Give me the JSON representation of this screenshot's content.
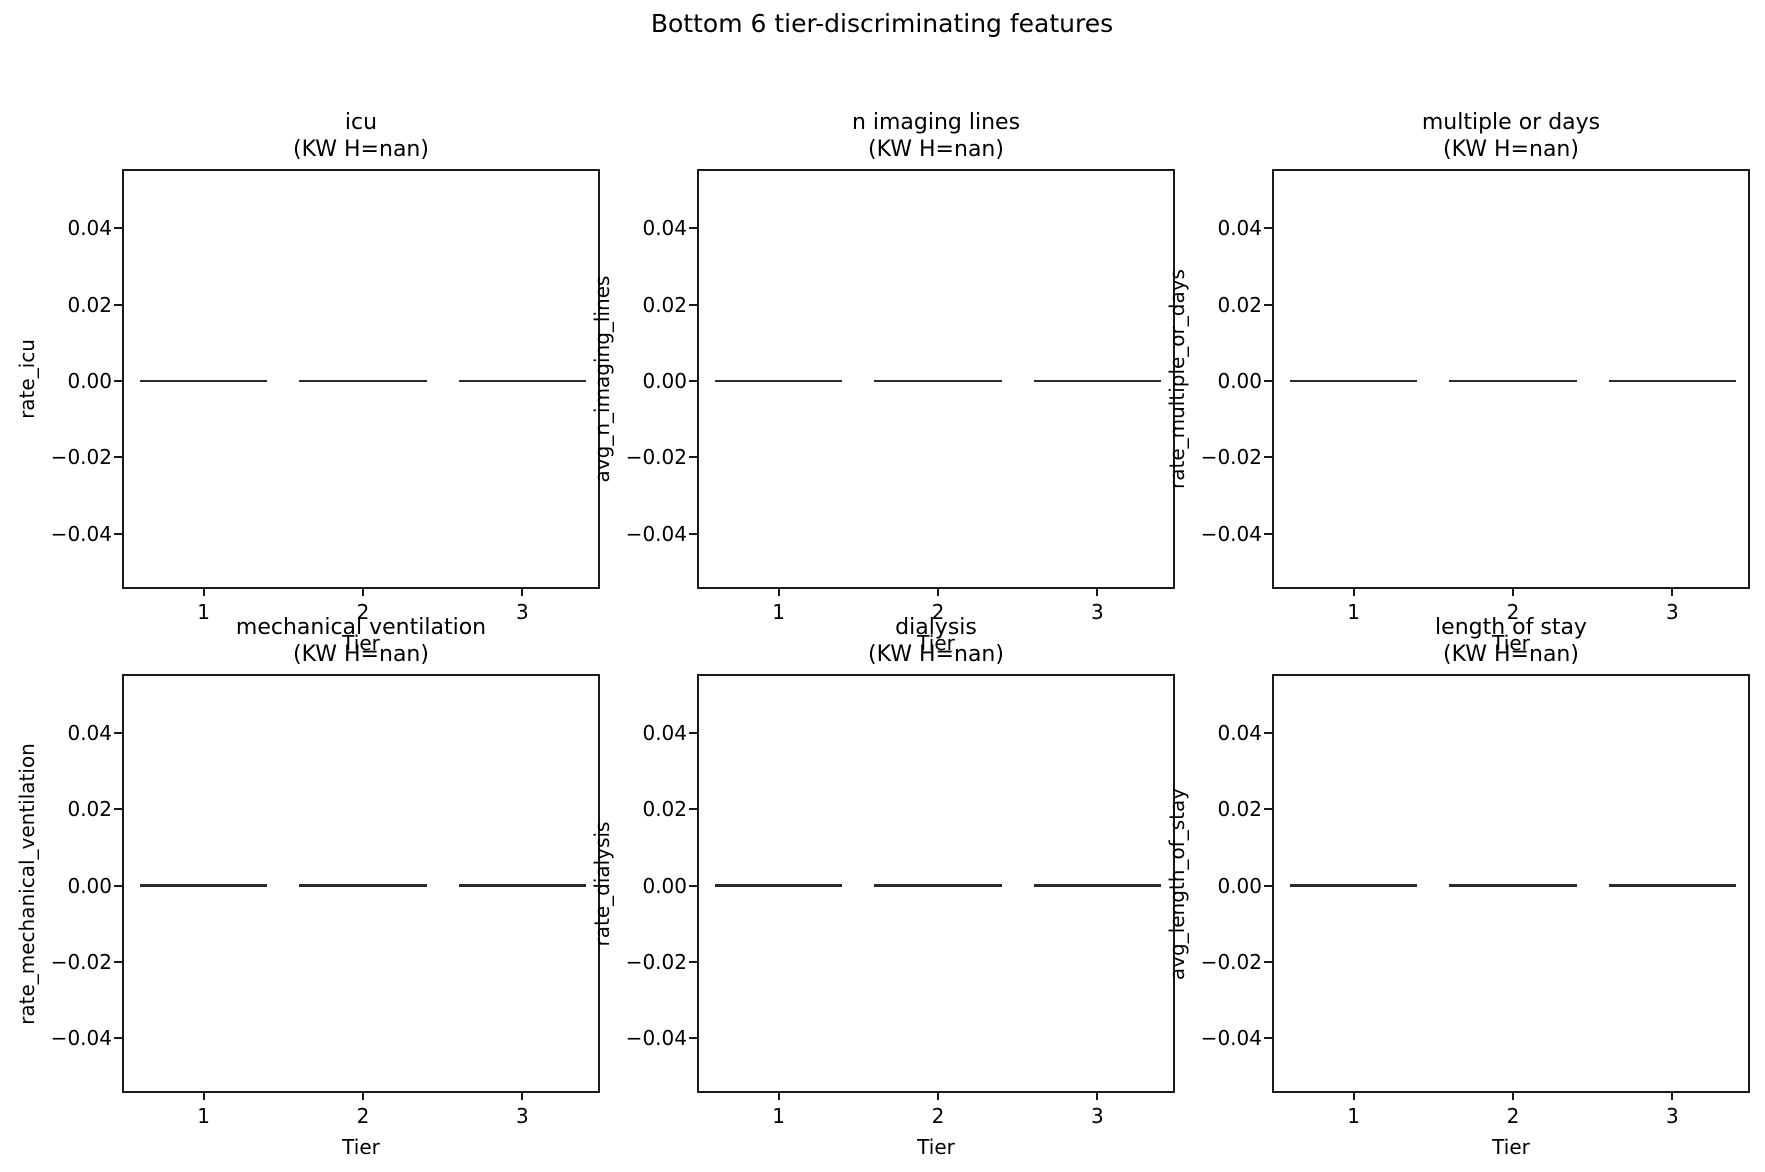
{
  "suptitle": "Bottom 6 tier-discriminating features",
  "colors": {
    "background": "#ffffff",
    "text": "#000000",
    "spine": "#1a1a1a",
    "median_line": "#2b2b2b"
  },
  "chart_data": [
    {
      "type": "boxplot",
      "title": "icu",
      "stat_line": "(KW H=nan)",
      "kw_h": "nan",
      "xlabel": "Tier",
      "ylabel": "rate_icu",
      "x": [
        1,
        2,
        3
      ],
      "xtick_labels": [
        "1",
        "2",
        "3"
      ],
      "medians": [
        0.0,
        0.0,
        0.0
      ],
      "box_width": 0.8,
      "xlim": [
        0.5,
        3.5
      ],
      "ylim": [
        -0.055,
        0.055
      ],
      "ytick_values": [
        0.04,
        0.02,
        0.0,
        -0.02,
        -0.04
      ],
      "ytick_labels": [
        "0.04",
        "0.02",
        "0.00",
        "−0.02",
        "−0.04"
      ]
    },
    {
      "type": "boxplot",
      "title": "n imaging lines",
      "stat_line": "(KW H=nan)",
      "kw_h": "nan",
      "xlabel": "Tier",
      "ylabel": "avg_n_imaging_lines",
      "x": [
        1,
        2,
        3
      ],
      "xtick_labels": [
        "1",
        "2",
        "3"
      ],
      "medians": [
        0.0,
        0.0,
        0.0
      ],
      "box_width": 0.8,
      "xlim": [
        0.5,
        3.5
      ],
      "ylim": [
        -0.055,
        0.055
      ],
      "ytick_values": [
        0.04,
        0.02,
        0.0,
        -0.02,
        -0.04
      ],
      "ytick_labels": [
        "0.04",
        "0.02",
        "0.00",
        "−0.02",
        "−0.04"
      ]
    },
    {
      "type": "boxplot",
      "title": "multiple or days",
      "stat_line": "(KW H=nan)",
      "kw_h": "nan",
      "xlabel": "Tier",
      "ylabel": "rate_multiple_or_days",
      "x": [
        1,
        2,
        3
      ],
      "xtick_labels": [
        "1",
        "2",
        "3"
      ],
      "medians": [
        0.0,
        0.0,
        0.0
      ],
      "box_width": 0.8,
      "xlim": [
        0.5,
        3.5
      ],
      "ylim": [
        -0.055,
        0.055
      ],
      "ytick_values": [
        0.04,
        0.02,
        0.0,
        -0.02,
        -0.04
      ],
      "ytick_labels": [
        "0.04",
        "0.02",
        "0.00",
        "−0.02",
        "−0.04"
      ]
    },
    {
      "type": "boxplot",
      "title": "mechanical ventilation",
      "stat_line": "(KW H=nan)",
      "kw_h": "nan",
      "xlabel": "Tier",
      "ylabel": "rate_mechanical_ventilation",
      "x": [
        1,
        2,
        3
      ],
      "xtick_labels": [
        "1",
        "2",
        "3"
      ],
      "medians": [
        0.0,
        0.0,
        0.0
      ],
      "box_width": 0.8,
      "xlim": [
        0.5,
        3.5
      ],
      "ylim": [
        -0.055,
        0.055
      ],
      "ytick_values": [
        0.04,
        0.02,
        0.0,
        -0.02,
        -0.04
      ],
      "ytick_labels": [
        "0.04",
        "0.02",
        "0.00",
        "−0.02",
        "−0.04"
      ]
    },
    {
      "type": "boxplot",
      "title": "dialysis",
      "stat_line": "(KW H=nan)",
      "kw_h": "nan",
      "xlabel": "Tier",
      "ylabel": "rate_dialysis",
      "x": [
        1,
        2,
        3
      ],
      "xtick_labels": [
        "1",
        "2",
        "3"
      ],
      "medians": [
        0.0,
        0.0,
        0.0
      ],
      "box_width": 0.8,
      "xlim": [
        0.5,
        3.5
      ],
      "ylim": [
        -0.055,
        0.055
      ],
      "ytick_values": [
        0.04,
        0.02,
        0.0,
        -0.02,
        -0.04
      ],
      "ytick_labels": [
        "0.04",
        "0.02",
        "0.00",
        "−0.02",
        "−0.04"
      ]
    },
    {
      "type": "boxplot",
      "title": "length of stay",
      "stat_line": "(KW H=nan)",
      "kw_h": "nan",
      "xlabel": "Tier",
      "ylabel": "avg_length_of_stay",
      "x": [
        1,
        2,
        3
      ],
      "xtick_labels": [
        "1",
        "2",
        "3"
      ],
      "medians": [
        0.0,
        0.0,
        0.0
      ],
      "box_width": 0.8,
      "xlim": [
        0.5,
        3.5
      ],
      "ylim": [
        -0.055,
        0.055
      ],
      "ytick_values": [
        0.04,
        0.02,
        0.0,
        -0.02,
        -0.04
      ],
      "ytick_labels": [
        "0.04",
        "0.02",
        "0.00",
        "−0.02",
        "−0.04"
      ]
    }
  ]
}
